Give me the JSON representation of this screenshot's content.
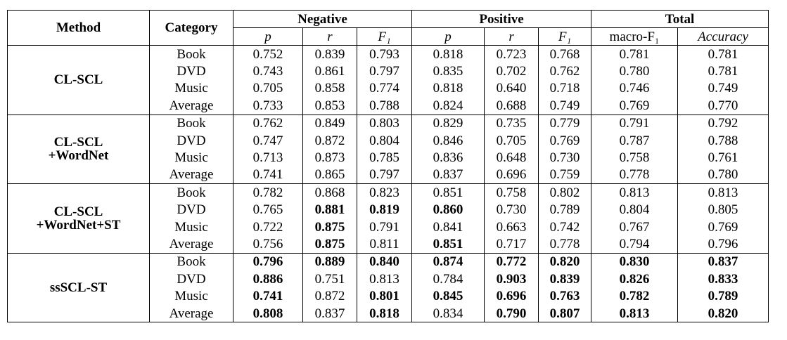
{
  "header": {
    "method": "Method",
    "category": "Category",
    "groups": [
      "Negative",
      "Positive",
      "Total"
    ],
    "columns": [
      "p",
      "r",
      "F₁",
      "p",
      "r",
      "F₁",
      "macro-F₁",
      "Accuracy"
    ]
  },
  "groups": [
    {
      "method": [
        "CL-SCL"
      ],
      "rows": [
        {
          "category": "Book",
          "values": [
            "0.752",
            "0.839",
            "0.793",
            "0.818",
            "0.723",
            "0.768",
            "0.781",
            "0.781"
          ],
          "bold": [
            false,
            false,
            false,
            false,
            false,
            false,
            false,
            false
          ]
        },
        {
          "category": "DVD",
          "values": [
            "0.743",
            "0.861",
            "0.797",
            "0.835",
            "0.702",
            "0.762",
            "0.780",
            "0.781"
          ],
          "bold": [
            false,
            false,
            false,
            false,
            false,
            false,
            false,
            false
          ]
        },
        {
          "category": "Music",
          "values": [
            "0.705",
            "0.858",
            "0.774",
            "0.818",
            "0.640",
            "0.718",
            "0.746",
            "0.749"
          ],
          "bold": [
            false,
            false,
            false,
            false,
            false,
            false,
            false,
            false
          ]
        },
        {
          "category": "Average",
          "values": [
            "0.733",
            "0.853",
            "0.788",
            "0.824",
            "0.688",
            "0.749",
            "0.769",
            "0.770"
          ],
          "bold": [
            false,
            false,
            false,
            false,
            false,
            false,
            false,
            false
          ]
        }
      ]
    },
    {
      "method": [
        "CL-SCL",
        "+WordNet"
      ],
      "rows": [
        {
          "category": "Book",
          "values": [
            "0.762",
            "0.849",
            "0.803",
            "0.829",
            "0.735",
            "0.779",
            "0.791",
            "0.792"
          ],
          "bold": [
            false,
            false,
            false,
            false,
            false,
            false,
            false,
            false
          ]
        },
        {
          "category": "DVD",
          "values": [
            "0.747",
            "0.872",
            "0.804",
            "0.846",
            "0.705",
            "0.769",
            "0.787",
            "0.788"
          ],
          "bold": [
            false,
            false,
            false,
            false,
            false,
            false,
            false,
            false
          ]
        },
        {
          "category": "Music",
          "values": [
            "0.713",
            "0.873",
            "0.785",
            "0.836",
            "0.648",
            "0.730",
            "0.758",
            "0.761"
          ],
          "bold": [
            false,
            false,
            false,
            false,
            false,
            false,
            false,
            false
          ]
        },
        {
          "category": "Average",
          "values": [
            "0.741",
            "0.865",
            "0.797",
            "0.837",
            "0.696",
            "0.759",
            "0.778",
            "0.780"
          ],
          "bold": [
            false,
            false,
            false,
            false,
            false,
            false,
            false,
            false
          ]
        }
      ]
    },
    {
      "method": [
        "CL-SCL",
        "+WordNet+ST"
      ],
      "rows": [
        {
          "category": "Book",
          "values": [
            "0.782",
            "0.868",
            "0.823",
            "0.851",
            "0.758",
            "0.802",
            "0.813",
            "0.813"
          ],
          "bold": [
            false,
            false,
            false,
            false,
            false,
            false,
            false,
            false
          ]
        },
        {
          "category": "DVD",
          "values": [
            "0.765",
            "0.881",
            "0.819",
            "0.860",
            "0.730",
            "0.789",
            "0.804",
            "0.805"
          ],
          "bold": [
            false,
            true,
            true,
            true,
            false,
            false,
            false,
            false
          ]
        },
        {
          "category": "Music",
          "values": [
            "0.722",
            "0.875",
            "0.791",
            "0.841",
            "0.663",
            "0.742",
            "0.767",
            "0.769"
          ],
          "bold": [
            false,
            true,
            false,
            false,
            false,
            false,
            false,
            false
          ]
        },
        {
          "category": "Average",
          "values": [
            "0.756",
            "0.875",
            "0.811",
            "0.851",
            "0.717",
            "0.778",
            "0.794",
            "0.796"
          ],
          "bold": [
            false,
            true,
            false,
            true,
            false,
            false,
            false,
            false
          ]
        }
      ]
    },
    {
      "method": [
        "ssSCL-ST"
      ],
      "rows": [
        {
          "category": "Book",
          "values": [
            "0.796",
            "0.889",
            "0.840",
            "0.874",
            "0.772",
            "0.820",
            "0.830",
            "0.837"
          ],
          "bold": [
            true,
            true,
            true,
            true,
            true,
            true,
            true,
            true
          ]
        },
        {
          "category": "DVD",
          "values": [
            "0.886",
            "0.751",
            "0.813",
            "0.784",
            "0.903",
            "0.839",
            "0.826",
            "0.833"
          ],
          "bold": [
            true,
            false,
            false,
            false,
            true,
            true,
            true,
            true
          ]
        },
        {
          "category": "Music",
          "values": [
            "0.741",
            "0.872",
            "0.801",
            "0.845",
            "0.696",
            "0.763",
            "0.782",
            "0.789"
          ],
          "bold": [
            true,
            false,
            true,
            true,
            true,
            true,
            true,
            true
          ]
        },
        {
          "category": "Average",
          "values": [
            "0.808",
            "0.837",
            "0.818",
            "0.834",
            "0.790",
            "0.807",
            "0.813",
            "0.820"
          ],
          "bold": [
            true,
            false,
            true,
            false,
            true,
            true,
            true,
            true
          ]
        }
      ]
    }
  ]
}
